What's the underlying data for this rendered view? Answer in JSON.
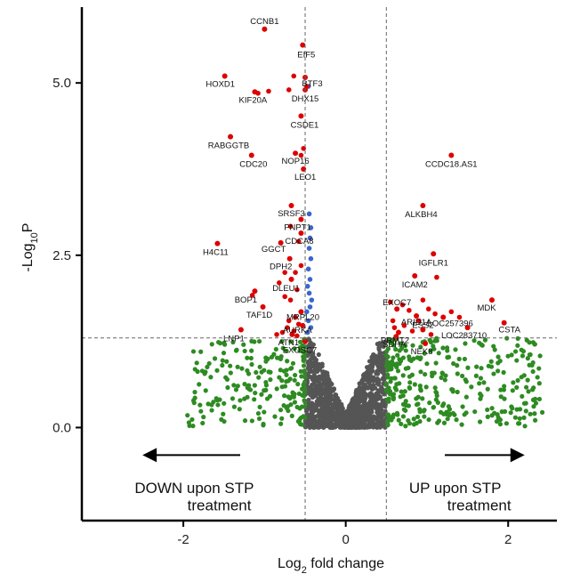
{
  "chart_data": {
    "type": "scatter",
    "title": "",
    "xlabel": "Log2 fold change",
    "ylabel": "-Log10P",
    "xlim": [
      -3.25,
      2.6
    ],
    "ylim": [
      -1.35,
      6.1
    ],
    "x_ticks": [
      -2,
      0,
      2
    ],
    "x_tick_labels": [
      "-2",
      "0",
      "2"
    ],
    "y_ticks": [
      0.0,
      2.5,
      5.0
    ],
    "y_tick_labels": [
      "0.0",
      "2.5",
      "5.0"
    ],
    "grid": false,
    "legend": "none",
    "fc_cutoffs": [
      -0.5,
      0.5
    ],
    "p_cutoff": 1.3,
    "colors": {
      "ns": "#555555",
      "log2fc_only": "#2e8b22",
      "p_only": "#3a66cc",
      "both": "#dd0000"
    },
    "annotations": [
      {
        "text": "DOWN upon STP",
        "x": -2.6,
        "y": -0.95
      },
      {
        "text": "treatment",
        "x": -1.95,
        "y": -1.2
      },
      {
        "text": "UP upon STP",
        "x": 0.78,
        "y": -0.95
      },
      {
        "text": "treatment",
        "x": 1.25,
        "y": -1.2
      }
    ],
    "arrows": [
      {
        "direction": "left",
        "x_from": -1.3,
        "x_to": -2.35,
        "y": -0.4
      },
      {
        "direction": "right",
        "x_from": 1.22,
        "x_to": 2.05,
        "y": -0.4
      }
    ],
    "labeled_points": [
      {
        "label": "CCNB1",
        "x": -1.0,
        "y": 5.78,
        "color": "both"
      },
      {
        "label": "EIF5",
        "x": -0.53,
        "y": 5.55,
        "color": "both"
      },
      {
        "label": "HOXD1",
        "x": -1.49,
        "y": 5.1,
        "color": "both"
      },
      {
        "label": "BTF3",
        "x": -0.5,
        "y": 5.08,
        "color": "both"
      },
      {
        "label": "KIF20A",
        "x": -1.12,
        "y": 4.87,
        "color": "both"
      },
      {
        "label": "DHX15",
        "x": -0.5,
        "y": 4.9,
        "color": "both"
      },
      {
        "label": "CSDE1",
        "x": -0.55,
        "y": 4.52,
        "color": "both"
      },
      {
        "label": "RABGGTB",
        "x": -1.42,
        "y": 4.22,
        "color": "both"
      },
      {
        "label": "CDC20",
        "x": -1.16,
        "y": 3.95,
        "color": "both"
      },
      {
        "label": "NOP16",
        "x": -0.62,
        "y": 3.98,
        "color": "both"
      },
      {
        "label": "LEO1",
        "x": -0.52,
        "y": 3.75,
        "color": "both"
      },
      {
        "label": "CCDC18.AS1",
        "x": 1.3,
        "y": 3.95,
        "color": "both"
      },
      {
        "label": "SRSF3",
        "x": -0.67,
        "y": 3.22,
        "color": "both"
      },
      {
        "label": "ALKBH4",
        "x": 0.95,
        "y": 3.22,
        "color": "both"
      },
      {
        "label": "PNPT1",
        "x": -0.55,
        "y": 3.02,
        "color": "both"
      },
      {
        "label": "CDCA8",
        "x": -0.55,
        "y": 2.82,
        "color": "both"
      },
      {
        "label": "H4C11",
        "x": -1.58,
        "y": 2.67,
        "color": "both"
      },
      {
        "label": "GGCT",
        "x": -0.8,
        "y": 2.68,
        "color": "both"
      },
      {
        "label": "IGFLR1",
        "x": 1.08,
        "y": 2.52,
        "color": "both"
      },
      {
        "label": "DPH2",
        "x": -0.69,
        "y": 2.45,
        "color": "both"
      },
      {
        "label": "DLEU1",
        "x": -0.67,
        "y": 2.15,
        "color": "both"
      },
      {
        "label": "ICAM2",
        "x": 0.85,
        "y": 2.2,
        "color": "both"
      },
      {
        "label": "BOP1",
        "x": -1.12,
        "y": 1.98,
        "color": "both"
      },
      {
        "label": "TAF1D",
        "x": -1.02,
        "y": 1.75,
        "color": "both"
      },
      {
        "label": "MRPL20",
        "x": -0.55,
        "y": 1.68,
        "color": "both"
      },
      {
        "label": "EXOC7",
        "x": 0.63,
        "y": 1.72,
        "color": "both"
      },
      {
        "label": "MDK",
        "x": 1.8,
        "y": 1.85,
        "color": "both"
      },
      {
        "label": "ARID1A",
        "x": 0.87,
        "y": 1.62,
        "color": "both"
      },
      {
        "label": "LOC257396",
        "x": 1.2,
        "y": 1.6,
        "color": "both"
      },
      {
        "label": "AURKA",
        "x": -0.53,
        "y": 1.48,
        "color": "both"
      },
      {
        "label": "ESS2",
        "x": 0.95,
        "y": 1.42,
        "color": "both"
      },
      {
        "label": "PRMT2",
        "x": 0.65,
        "y": 1.38,
        "color": "both"
      },
      {
        "label": "LOC283710",
        "x": 1.5,
        "y": 1.45,
        "color": "both"
      },
      {
        "label": "CSTA",
        "x": 1.95,
        "y": 1.52,
        "color": "both"
      },
      {
        "label": "LNP1",
        "x": -1.29,
        "y": 1.42,
        "color": "both"
      },
      {
        "label": "ATN1",
        "x": -0.66,
        "y": 1.35,
        "color": "both"
      },
      {
        "label": "SDHA",
        "x": 0.62,
        "y": 1.32,
        "color": "both"
      },
      {
        "label": "NEK8",
        "x": 0.98,
        "y": 1.22,
        "color": "both"
      },
      {
        "label": "EXOSC7",
        "x": -0.5,
        "y": 1.25,
        "color": "both"
      }
    ],
    "extra_red_points": [
      [
        -0.95,
        4.88
      ],
      [
        -1.08,
        4.85
      ],
      [
        -0.64,
        5.1
      ],
      [
        -0.48,
        4.95
      ],
      [
        -0.7,
        4.9
      ],
      [
        -0.75,
        2.25
      ],
      [
        -0.62,
        2.25
      ],
      [
        -0.82,
        2.1
      ],
      [
        -0.6,
        2.0
      ],
      [
        -1.15,
        1.92
      ],
      [
        -0.75,
        1.9
      ],
      [
        -0.68,
        1.85
      ],
      [
        -0.62,
        1.6
      ],
      [
        -0.7,
        1.55
      ],
      [
        -0.58,
        1.5
      ],
      [
        -0.72,
        1.45
      ],
      [
        -0.64,
        1.4
      ],
      [
        -0.78,
        1.38
      ],
      [
        -0.6,
        1.33
      ],
      [
        -0.85,
        1.35
      ],
      [
        0.55,
        1.82
      ],
      [
        0.7,
        1.78
      ],
      [
        0.78,
        1.7
      ],
      [
        0.95,
        1.85
      ],
      [
        1.02,
        1.72
      ],
      [
        1.1,
        1.65
      ],
      [
        1.12,
        2.18
      ],
      [
        0.58,
        1.55
      ],
      [
        0.72,
        1.48
      ],
      [
        0.82,
        1.4
      ],
      [
        1.05,
        1.35
      ],
      [
        1.3,
        1.68
      ],
      [
        1.4,
        1.6
      ],
      [
        0.9,
        1.55
      ],
      [
        0.6,
        1.45
      ],
      [
        -0.55,
        3.95
      ],
      [
        -0.52,
        4.05
      ],
      [
        -0.58,
        2.7
      ],
      [
        -0.55,
        2.35
      ],
      [
        -0.68,
        2.92
      ]
    ],
    "p_only_points": [
      [
        -0.46,
        4.95
      ],
      [
        -0.45,
        3.1
      ],
      [
        -0.43,
        2.9
      ],
      [
        -0.44,
        2.75
      ],
      [
        -0.45,
        2.6
      ],
      [
        -0.43,
        2.45
      ],
      [
        -0.46,
        2.3
      ],
      [
        -0.44,
        2.15
      ],
      [
        -0.47,
        2.05
      ],
      [
        -0.45,
        1.95
      ],
      [
        -0.42,
        1.85
      ],
      [
        -0.44,
        1.75
      ],
      [
        -0.48,
        1.68
      ],
      [
        -0.46,
        1.55
      ],
      [
        -0.43,
        1.45
      ],
      [
        -0.47,
        1.38
      ]
    ]
  }
}
